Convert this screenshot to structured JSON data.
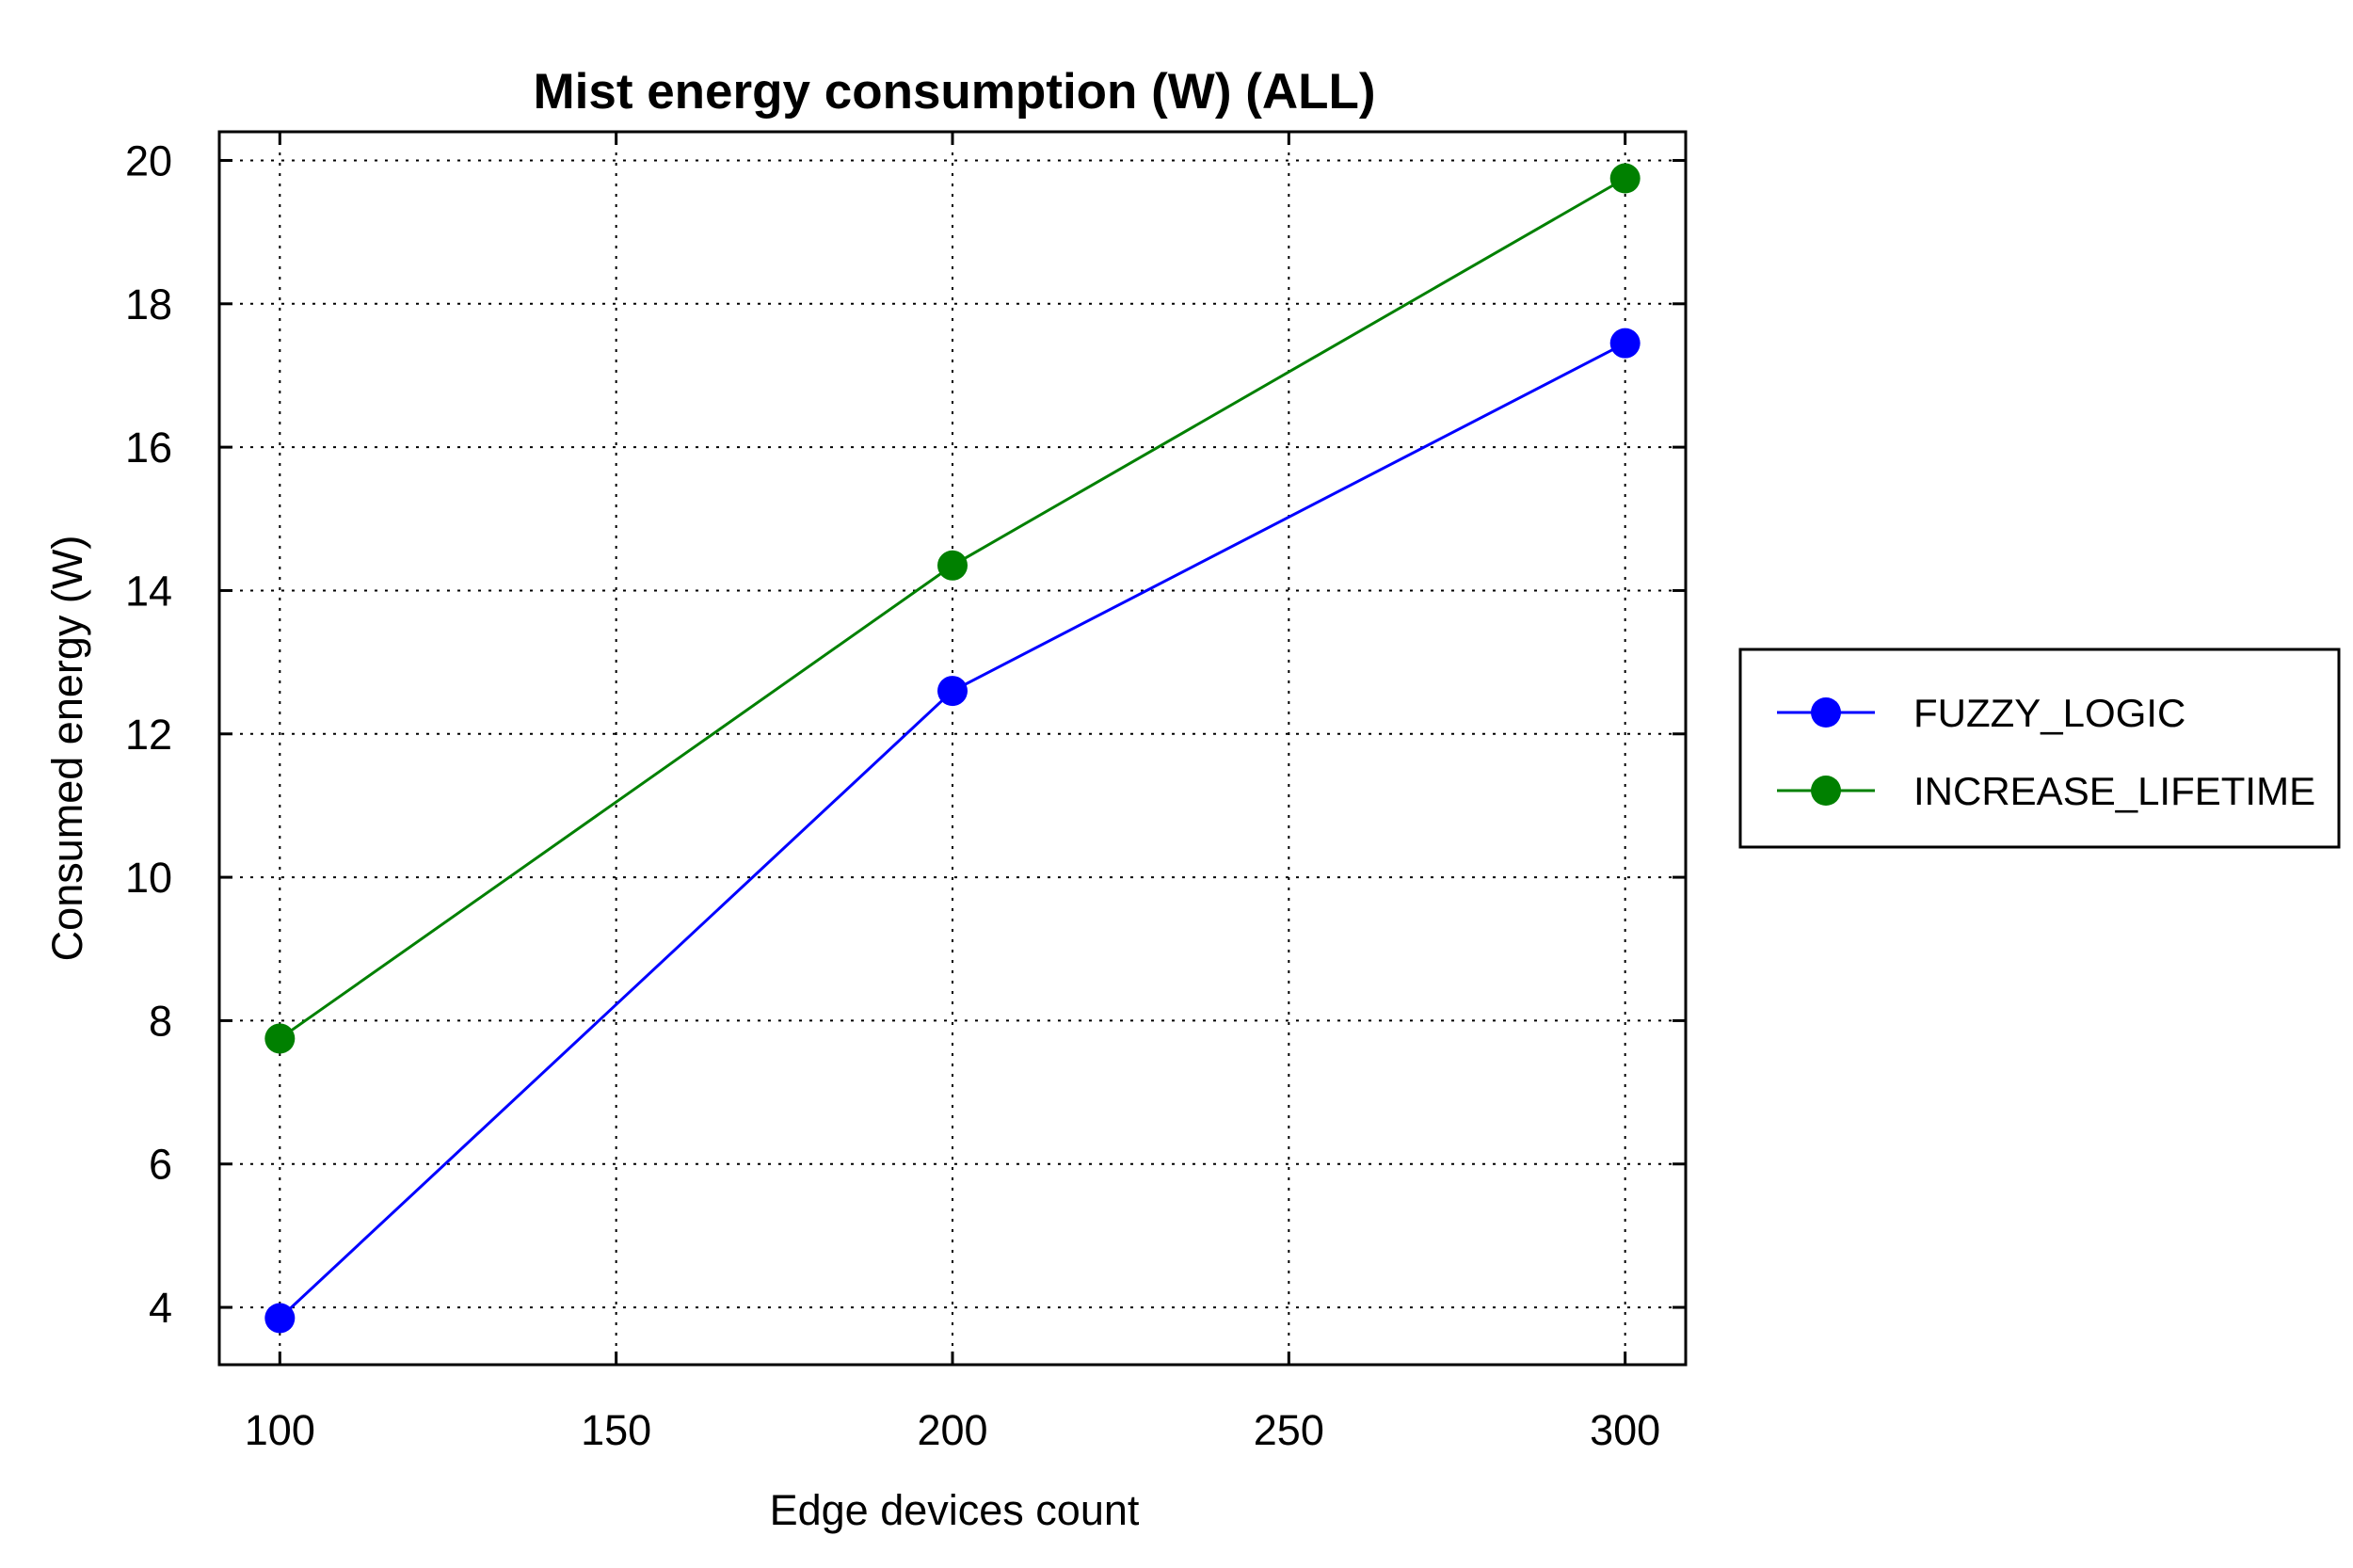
{
  "chart_data": {
    "type": "line",
    "title": "Mist energy consumption (W) (ALL)",
    "xlabel": "Edge devices count",
    "ylabel": "Consumed energy (W)",
    "x": [
      100,
      200,
      300
    ],
    "xlim": [
      91,
      309
    ],
    "ylim": [
      3.2,
      20.4
    ],
    "xticks": [
      100,
      150,
      200,
      250,
      300
    ],
    "yticks": [
      4,
      6,
      8,
      10,
      12,
      14,
      16,
      18,
      20
    ],
    "grid": true,
    "grid_style": "dotted",
    "legend_position": "right",
    "series": [
      {
        "name": "FUZZY_LOGIC",
        "color": "#0000ff",
        "marker": "circle",
        "values": [
          3.85,
          12.6,
          17.45
        ]
      },
      {
        "name": "INCREASE_LIFETIME",
        "color": "#008000",
        "marker": "circle",
        "values": [
          7.75,
          14.35,
          19.75
        ]
      }
    ]
  }
}
